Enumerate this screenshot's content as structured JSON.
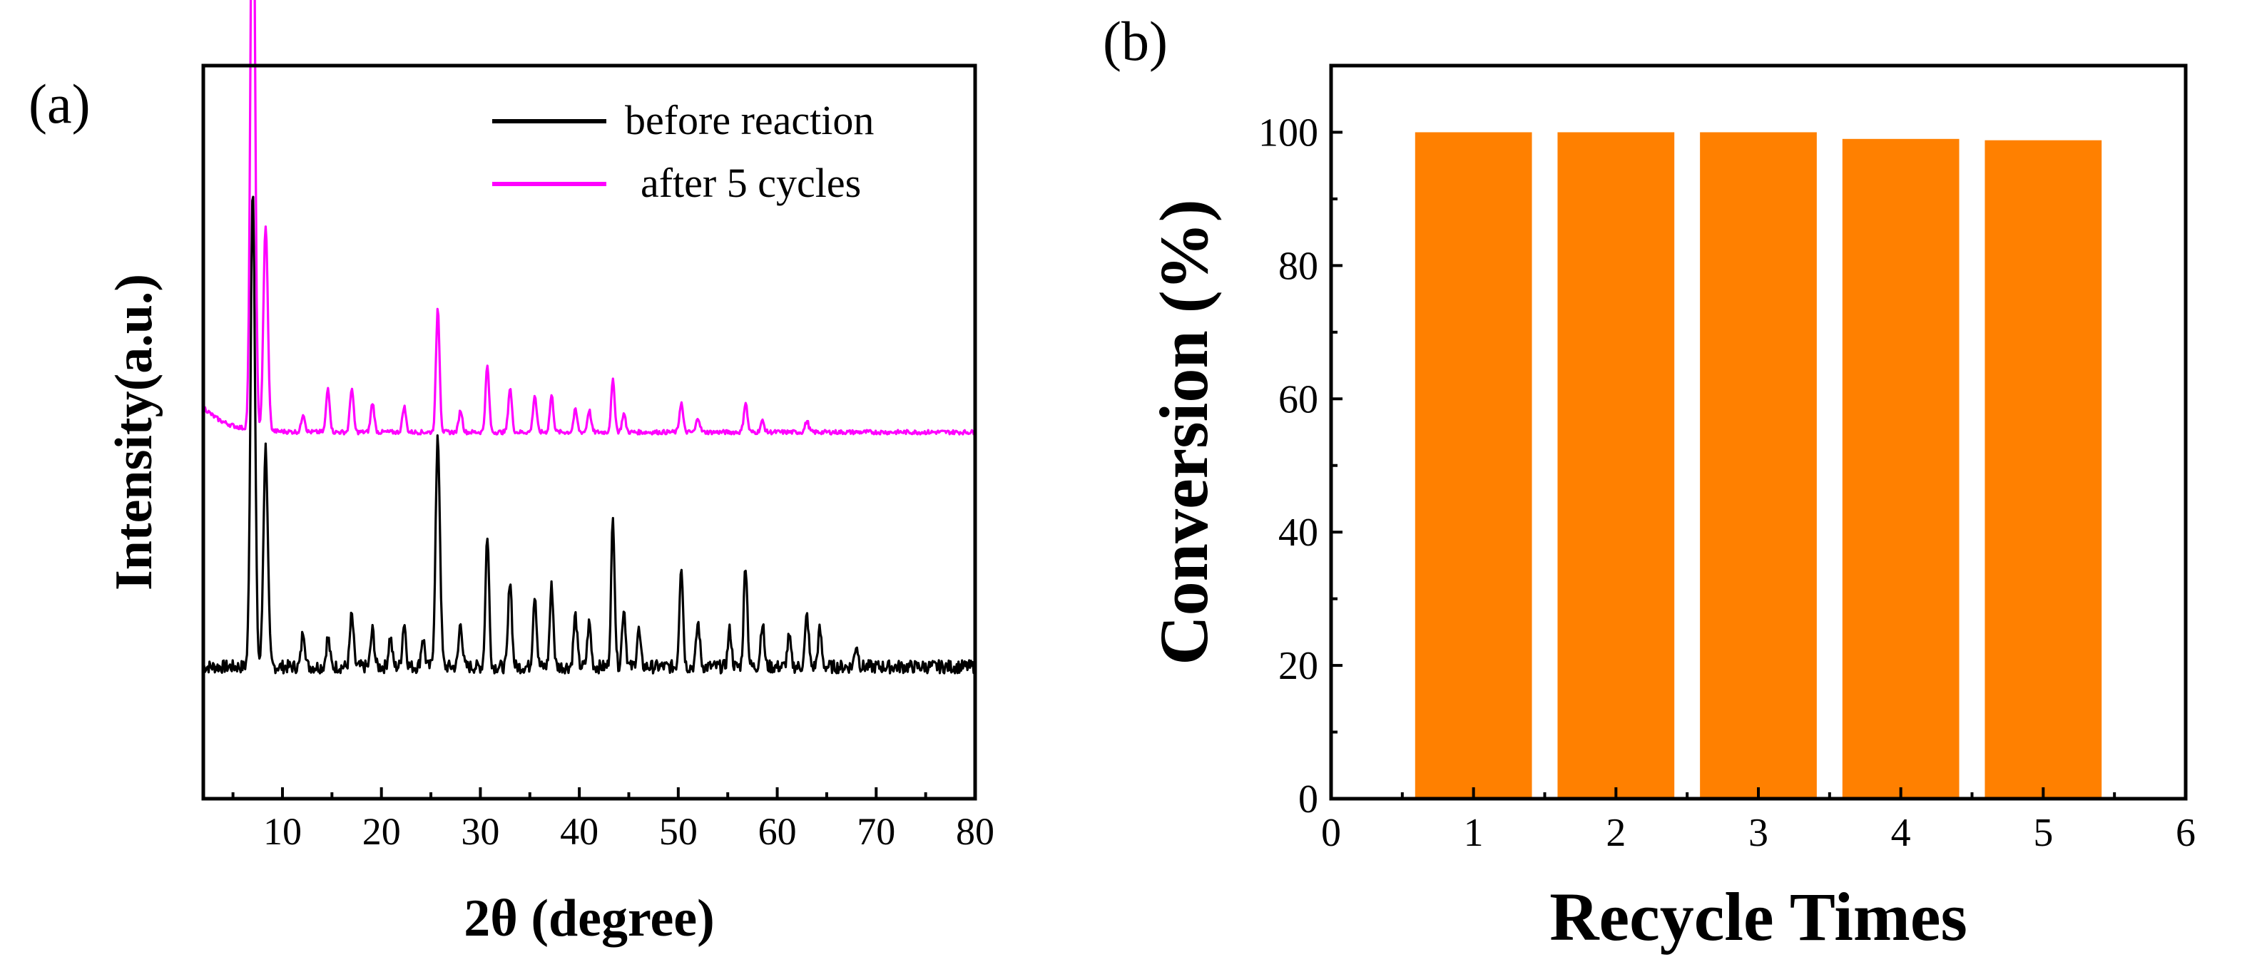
{
  "panel_a": {
    "label": "(a)"
  },
  "panel_b": {
    "label": "(b)"
  },
  "colors": {
    "before": "#000000",
    "after": "#ff00ff",
    "bar": "#ff8000",
    "axis": "#000000"
  },
  "chart_data": [
    {
      "type": "line",
      "xlabel": "2θ (degree)",
      "ylabel": "Intensity(a.u.)",
      "xlim": [
        2,
        80
      ],
      "ylim": [
        0,
        10
      ],
      "x_ticks": [
        10,
        20,
        30,
        40,
        50,
        60,
        70,
        80
      ],
      "x_tick_labels": [
        "10",
        "20",
        "30",
        "40",
        "50",
        "60",
        "70",
        "80"
      ],
      "legend_position": "top-right",
      "series": [
        {
          "name": "before reaction",
          "baseline_y": 1.8,
          "noise": 0.09,
          "peaks": [
            {
              "x": 7.0,
              "h": 6.6
            },
            {
              "x": 8.3,
              "h": 3.0
            },
            {
              "x": 12.1,
              "h": 0.5
            },
            {
              "x": 14.6,
              "h": 0.4
            },
            {
              "x": 17.0,
              "h": 0.7
            },
            {
              "x": 19.1,
              "h": 0.5
            },
            {
              "x": 20.9,
              "h": 0.4
            },
            {
              "x": 22.3,
              "h": 0.6
            },
            {
              "x": 24.2,
              "h": 0.4
            },
            {
              "x": 25.7,
              "h": 3.1
            },
            {
              "x": 28.0,
              "h": 0.6
            },
            {
              "x": 30.7,
              "h": 1.8
            },
            {
              "x": 33.0,
              "h": 1.2
            },
            {
              "x": 35.5,
              "h": 1.0
            },
            {
              "x": 37.2,
              "h": 1.1
            },
            {
              "x": 39.6,
              "h": 0.7
            },
            {
              "x": 41.0,
              "h": 0.6
            },
            {
              "x": 43.4,
              "h": 2.0
            },
            {
              "x": 44.5,
              "h": 0.8
            },
            {
              "x": 46.0,
              "h": 0.5
            },
            {
              "x": 50.3,
              "h": 1.4
            },
            {
              "x": 52.0,
              "h": 0.6
            },
            {
              "x": 55.2,
              "h": 0.5
            },
            {
              "x": 56.8,
              "h": 1.4
            },
            {
              "x": 58.5,
              "h": 0.6
            },
            {
              "x": 61.2,
              "h": 0.4
            },
            {
              "x": 63.0,
              "h": 0.7
            },
            {
              "x": 64.3,
              "h": 0.5
            },
            {
              "x": 68.0,
              "h": 0.3
            }
          ]
        },
        {
          "name": "after 5 cycles",
          "baseline_y": 5.0,
          "noise": 0.03,
          "start_bump": 0.35,
          "peaks": [
            {
              "x": 7.0,
              "h": 9.0
            },
            {
              "x": 8.3,
              "h": 2.8
            },
            {
              "x": 12.1,
              "h": 0.25
            },
            {
              "x": 14.6,
              "h": 0.6
            },
            {
              "x": 17.0,
              "h": 0.6
            },
            {
              "x": 19.1,
              "h": 0.4
            },
            {
              "x": 22.3,
              "h": 0.35
            },
            {
              "x": 25.7,
              "h": 1.7
            },
            {
              "x": 28.0,
              "h": 0.3
            },
            {
              "x": 30.7,
              "h": 0.9
            },
            {
              "x": 33.0,
              "h": 0.6
            },
            {
              "x": 35.5,
              "h": 0.5
            },
            {
              "x": 37.2,
              "h": 0.5
            },
            {
              "x": 39.6,
              "h": 0.3
            },
            {
              "x": 41.0,
              "h": 0.3
            },
            {
              "x": 43.4,
              "h": 0.7
            },
            {
              "x": 44.5,
              "h": 0.25
            },
            {
              "x": 50.3,
              "h": 0.4
            },
            {
              "x": 52.0,
              "h": 0.2
            },
            {
              "x": 56.8,
              "h": 0.4
            },
            {
              "x": 58.5,
              "h": 0.15
            },
            {
              "x": 63.0,
              "h": 0.15
            }
          ]
        }
      ]
    },
    {
      "type": "bar",
      "xlabel": "Recycle Times",
      "ylabel": "Conversion (%)",
      "xlim": [
        0,
        6
      ],
      "ylim": [
        0,
        110
      ],
      "x_ticks": [
        0,
        1,
        2,
        3,
        4,
        5,
        6
      ],
      "x_tick_labels": [
        "0",
        "1",
        "2",
        "3",
        "4",
        "5",
        "6"
      ],
      "y_ticks": [
        0,
        20,
        40,
        60,
        80,
        100
      ],
      "y_tick_labels": [
        "0",
        "20",
        "40",
        "60",
        "80",
        "100"
      ],
      "categories": [
        1,
        2,
        3,
        4,
        5
      ],
      "values": [
        100,
        100,
        100,
        99,
        98.8
      ]
    }
  ]
}
